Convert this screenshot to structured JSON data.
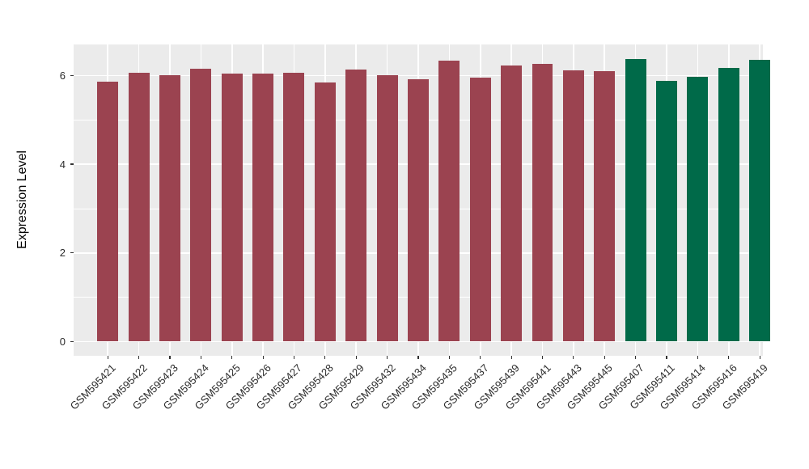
{
  "figure": {
    "panel_background": "#EBEBEB",
    "grid_color": "#FFFFFF",
    "tick_color": "#333333",
    "axis_text_color": "#2B2B2B"
  },
  "chart_data": {
    "type": "bar",
    "title": "",
    "xlabel": "",
    "ylabel": "Expression Level",
    "categories": [
      "GSM595421",
      "GSM595422",
      "GSM595423",
      "GSM595424",
      "GSM595425",
      "GSM595426",
      "GSM595427",
      "GSM595428",
      "GSM595429",
      "GSM595432",
      "GSM595434",
      "GSM595435",
      "GSM595437",
      "GSM595439",
      "GSM595441",
      "GSM595443",
      "GSM595445",
      "GSM595407",
      "GSM595411",
      "GSM595414",
      "GSM595416",
      "GSM595419"
    ],
    "values": [
      5.86,
      6.06,
      6.01,
      6.15,
      6.05,
      6.05,
      6.06,
      5.84,
      6.13,
      6.01,
      5.91,
      6.34,
      5.95,
      6.22,
      6.27,
      6.12,
      6.1,
      6.37,
      5.88,
      5.97,
      6.18,
      6.36
    ],
    "bar_groups": [
      "red",
      "red",
      "red",
      "red",
      "red",
      "red",
      "red",
      "red",
      "red",
      "red",
      "red",
      "red",
      "red",
      "red",
      "red",
      "red",
      "red",
      "green",
      "green",
      "green",
      "green",
      "green"
    ],
    "group_colors": {
      "red": "#9B4350",
      "green": "#006A49"
    },
    "yticks": [
      0,
      2,
      4,
      6
    ],
    "minor_yticks": [
      1,
      3,
      5
    ],
    "ylim": [
      -0.32,
      6.7
    ],
    "grid": true,
    "legend_position": "none",
    "x_label_rotation": 45
  }
}
